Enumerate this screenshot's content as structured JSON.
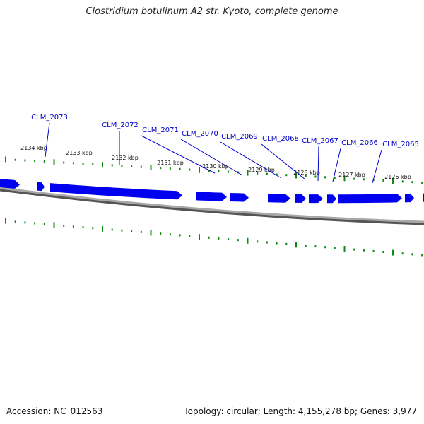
{
  "title": "Clostridium botulinum A2 str. Kyoto, complete genome",
  "footer": {
    "accession": "Accession: NC_012563",
    "summary": "Topology: circular; Length: 4,155,278 bp; Genes: 3,977"
  },
  "colors": {
    "gene": "#0000ee",
    "label": "#0000cc",
    "ticks": "#118811",
    "backbone": "#888888"
  },
  "scale_labels": [
    "2134 kbp",
    "2133 kbp",
    "2132 kbp",
    "2131 kbp",
    "2130 kbp",
    "2129 kbp",
    "2128 kbp",
    "2127 kbp",
    "2126 kbp"
  ],
  "gene_labels": [
    "CLM_2073",
    "CLM_2072",
    "CLM_2071",
    "CLM_2070",
    "CLM_2069",
    "CLM_2068",
    "CLM_2067",
    "CLM_2066",
    "CLM_2065"
  ]
}
